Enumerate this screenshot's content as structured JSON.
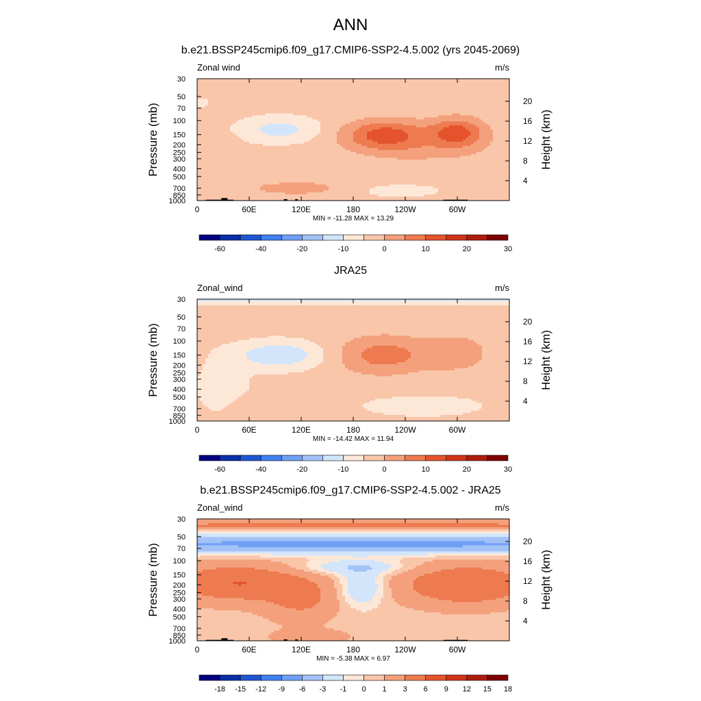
{
  "page": {
    "title": "ANN"
  },
  "chart_data": [
    {
      "type": "heatmap",
      "title": "b.e21.BSSP245cmip6.f09_g17.CMIP6-SSP2-4.5.002 (yrs 2045-2069)",
      "left_label": "Zonal wind",
      "right_label": "m/s",
      "ylabel": "Pressure (mb)",
      "y2label": "Height (km)",
      "x_ticks": [
        "0",
        "60E",
        "120E",
        "180",
        "120W",
        "60W"
      ],
      "x_tick_lon": [
        0,
        60,
        120,
        180,
        240,
        300
      ],
      "xlim": [
        0,
        360
      ],
      "y_ticks": [
        "30",
        "50",
        "70",
        "100",
        "150",
        "200",
        "250",
        "300",
        "400",
        "500",
        "700",
        "850",
        "1000"
      ],
      "y_tick_p": [
        30,
        50,
        70,
        100,
        150,
        200,
        250,
        300,
        400,
        500,
        700,
        850,
        1000
      ],
      "ylim": [
        1000,
        30
      ],
      "y_scale": "log",
      "y2_ticks": [
        "4",
        "8",
        "12",
        "16",
        "20"
      ],
      "y2_tick_km": [
        4,
        8,
        12,
        16,
        20
      ],
      "stats": "MIN = -11.28  MAX =  13.29",
      "colorbar_labels": [
        "-60",
        "-40",
        "-20",
        "-10",
        "0",
        "10",
        "20",
        "30"
      ],
      "colorbar_colors": [
        "#00007f",
        "#0a2fa6",
        "#1f56d4",
        "#3f7ff0",
        "#6f9ff5",
        "#a3c2f7",
        "#d2e5fa",
        "#fde8d8",
        "#f9c6aa",
        "#f4a07c",
        "#ee7a50",
        "#e4532c",
        "#cf3319",
        "#ae1c0d",
        "#800000"
      ],
      "levels": [
        -70,
        -60,
        -50,
        -40,
        -30,
        -20,
        -10,
        -5,
        0,
        5,
        10,
        15,
        20,
        25,
        30,
        35
      ]
    },
    {
      "type": "heatmap",
      "title": "JRA25",
      "left_label": "Zonal_wind",
      "right_label": "m/s",
      "ylabel": "Pressure (mb)",
      "y2label": "Height (km)",
      "x_ticks": [
        "0",
        "60E",
        "120E",
        "180",
        "120W",
        "60W"
      ],
      "x_tick_lon": [
        0,
        60,
        120,
        180,
        240,
        300
      ],
      "xlim": [
        0,
        360
      ],
      "y_ticks": [
        "30",
        "50",
        "70",
        "100",
        "150",
        "200",
        "250",
        "300",
        "400",
        "500",
        "700",
        "850",
        "1000"
      ],
      "y_tick_p": [
        30,
        50,
        70,
        100,
        150,
        200,
        250,
        300,
        400,
        500,
        700,
        850,
        1000
      ],
      "ylim": [
        1000,
        30
      ],
      "y_scale": "log",
      "y2_ticks": [
        "4",
        "8",
        "12",
        "16",
        "20"
      ],
      "y2_tick_km": [
        4,
        8,
        12,
        16,
        20
      ],
      "stats": "MIN = -14.42  MAX =  11.94",
      "colorbar_labels": [
        "-60",
        "-40",
        "-20",
        "-10",
        "0",
        "10",
        "20",
        "30"
      ],
      "colorbar_colors": [
        "#00007f",
        "#0a2fa6",
        "#1f56d4",
        "#3f7ff0",
        "#6f9ff5",
        "#a3c2f7",
        "#d2e5fa",
        "#fde8d8",
        "#f9c6aa",
        "#f4a07c",
        "#ee7a50",
        "#e4532c",
        "#cf3319",
        "#ae1c0d",
        "#800000"
      ],
      "levels": [
        -70,
        -60,
        -50,
        -40,
        -30,
        -20,
        -10,
        -5,
        0,
        5,
        10,
        15,
        20,
        25,
        30,
        35
      ]
    },
    {
      "type": "heatmap",
      "title": "b.e21.BSSP245cmip6.f09_g17.CMIP6-SSP2-4.5.002 - JRA25",
      "left_label": "Zonal_wind",
      "right_label": "m/s",
      "ylabel": "Pressure (mb)",
      "y2label": "Height (km)",
      "x_ticks": [
        "0",
        "60E",
        "120E",
        "180",
        "120W",
        "60W"
      ],
      "x_tick_lon": [
        0,
        60,
        120,
        180,
        240,
        300
      ],
      "xlim": [
        0,
        360
      ],
      "y_ticks": [
        "30",
        "50",
        "70",
        "100",
        "150",
        "200",
        "250",
        "300",
        "400",
        "500",
        "700",
        "850",
        "1000"
      ],
      "y_tick_p": [
        30,
        50,
        70,
        100,
        150,
        200,
        250,
        300,
        400,
        500,
        700,
        850,
        1000
      ],
      "ylim": [
        1000,
        30
      ],
      "y_scale": "log",
      "y2_ticks": [
        "4",
        "8",
        "12",
        "16",
        "20"
      ],
      "y2_tick_km": [
        4,
        8,
        12,
        16,
        20
      ],
      "stats": "MIN = -5.38  MAX =  6.97",
      "colorbar_labels": [
        "-18",
        "-15",
        "-12",
        "-9",
        "-6",
        "-3",
        "-1",
        "0",
        "1",
        "3",
        "6",
        "9",
        "12",
        "15",
        "18"
      ],
      "colorbar_colors": [
        "#00007f",
        "#0a2fa6",
        "#1f56d4",
        "#3f7ff0",
        "#6f9ff5",
        "#a3c2f7",
        "#d2e5fa",
        "#fde8d8",
        "#f9c6aa",
        "#f4a07c",
        "#ee7a50",
        "#e4532c",
        "#cf3319",
        "#ae1c0d",
        "#800000"
      ],
      "levels": [
        -21,
        -18,
        -15,
        -12,
        -9,
        -6,
        -3,
        -1,
        0,
        1,
        3,
        6,
        9,
        12,
        15,
        18
      ]
    }
  ]
}
